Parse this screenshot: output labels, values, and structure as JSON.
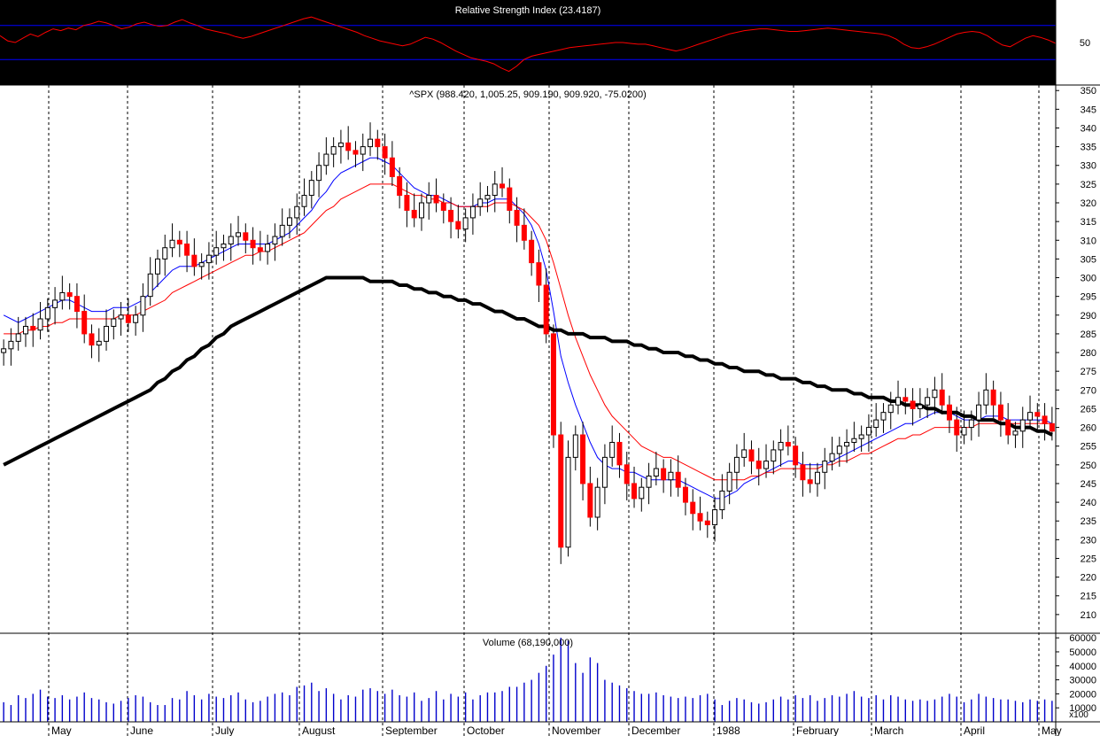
{
  "chart_data": [
    {
      "type": "line",
      "title": "Relative Strength Index (23.4187)",
      "ylim": [
        0,
        100
      ],
      "levels": [
        30,
        70
      ],
      "y_ticks": [
        "50"
      ],
      "series": [
        {
          "color": "#ff0000",
          "values": [
            58,
            52,
            50,
            55,
            60,
            57,
            62,
            66,
            64,
            67,
            65,
            70,
            72,
            75,
            73,
            70,
            66,
            68,
            72,
            74,
            71,
            69,
            70,
            74,
            77,
            73,
            70,
            66,
            64,
            62,
            60,
            57,
            55,
            57,
            60,
            63,
            66,
            69,
            72,
            75,
            78,
            80,
            77,
            74,
            71,
            68,
            65,
            62,
            58,
            55,
            52,
            50,
            48,
            46,
            48,
            52,
            56,
            54,
            50,
            45,
            40,
            36,
            32,
            30,
            28,
            25,
            20,
            16,
            22,
            30,
            34,
            36,
            38,
            40,
            42,
            44,
            45,
            46,
            47,
            48,
            49,
            50,
            50,
            49,
            48,
            48,
            46,
            44,
            42,
            40,
            42,
            45,
            48,
            51,
            54,
            57,
            60,
            62,
            64,
            65,
            66,
            66,
            65,
            64,
            63,
            63,
            64,
            65,
            66,
            67,
            66,
            65,
            64,
            63,
            62,
            61,
            60,
            58,
            54,
            48,
            44,
            43,
            45,
            48,
            52,
            56,
            60,
            62,
            63,
            62,
            58,
            52,
            47,
            45,
            50,
            55,
            58,
            56,
            53,
            49
          ]
        }
      ],
      "background": "#000000",
      "level_color": "#0000ff"
    },
    {
      "type": "candlestick",
      "title": "^SPX (988.420, 1,005.25, 909.190, 909.920, -75.0200)",
      "ylim": [
        205,
        351
      ],
      "y_ticks": [
        210,
        215,
        220,
        225,
        230,
        235,
        240,
        245,
        250,
        255,
        260,
        265,
        270,
        275,
        280,
        285,
        290,
        295,
        300,
        305,
        310,
        315,
        320,
        325,
        330,
        335,
        340,
        345,
        350
      ],
      "x_tick_labels": [
        "May",
        "June",
        "July",
        "August",
        "September",
        "October",
        "November",
        "December",
        "1988",
        "February",
        "March",
        "April",
        "May"
      ],
      "up_color": "#000000",
      "down_color": "#ff0000",
      "close": [
        281,
        283,
        285,
        287,
        286,
        289,
        292,
        294,
        296,
        295,
        291,
        285,
        282,
        283,
        287,
        289,
        290,
        288,
        290,
        295,
        301,
        305,
        308,
        310,
        309,
        306,
        303,
        304,
        306,
        308,
        309,
        311,
        312,
        310,
        308,
        307,
        309,
        311,
        314,
        316,
        319,
        322,
        326,
        330,
        333,
        335,
        336,
        334,
        333,
        335,
        337,
        335,
        332,
        327,
        322,
        318,
        316,
        320,
        322,
        320,
        318,
        315,
        313,
        316,
        319,
        321,
        322,
        325,
        324,
        318,
        314,
        310,
        304,
        298,
        285,
        258,
        228,
        252,
        258,
        245,
        236,
        244,
        252,
        256,
        250,
        245,
        241,
        244,
        247,
        249,
        246,
        248,
        244,
        240,
        237,
        235,
        234,
        238,
        243,
        248,
        252,
        254,
        251,
        249,
        251,
        254,
        256,
        255,
        250,
        246,
        245,
        248,
        251,
        253,
        255,
        256,
        257,
        258,
        260,
        262,
        264,
        266,
        268,
        267,
        265,
        266,
        268,
        270,
        266,
        262,
        258,
        260,
        262,
        266,
        270,
        266,
        262,
        258,
        259,
        262,
        264,
        263,
        261,
        259
      ],
      "series": [
        {
          "name": "",
          "color": "#0000ff",
          "values": [
            290,
            289,
            288,
            289,
            290,
            291,
            292,
            293,
            294,
            294,
            293,
            292,
            291,
            291,
            291,
            292,
            292,
            292,
            293,
            294,
            296,
            298,
            300,
            302,
            303,
            303,
            303,
            304,
            305,
            306,
            307,
            308,
            309,
            309,
            309,
            309,
            309,
            310,
            311,
            312,
            314,
            316,
            318,
            321,
            323,
            326,
            328,
            329,
            330,
            331,
            332,
            332,
            331,
            330,
            328,
            326,
            324,
            323,
            322,
            322,
            321,
            320,
            319,
            319,
            319,
            320,
            320,
            321,
            321,
            321,
            319,
            317,
            314,
            309,
            302,
            291,
            279,
            272,
            266,
            261,
            256,
            252,
            250,
            249,
            249,
            248,
            248,
            247,
            246,
            246,
            246,
            246,
            246,
            245,
            244,
            243,
            242,
            241,
            241,
            242,
            243,
            245,
            246,
            247,
            248,
            249,
            250,
            251,
            251,
            250,
            250,
            250,
            250,
            251,
            252,
            253,
            254,
            255,
            256,
            257,
            258,
            259,
            260,
            261,
            261,
            262,
            263,
            264,
            264,
            264,
            263,
            262,
            262,
            262,
            263,
            263,
            263,
            262,
            262,
            262,
            262,
            262,
            262,
            261
          ]
        },
        {
          "name": "",
          "color": "#ff0000",
          "values": [
            285,
            285,
            285,
            286,
            286,
            287,
            287,
            288,
            288,
            289,
            289,
            289,
            289,
            289,
            289,
            289,
            290,
            290,
            290,
            291,
            292,
            293,
            294,
            296,
            297,
            298,
            299,
            300,
            301,
            302,
            303,
            304,
            305,
            306,
            306,
            307,
            307,
            308,
            309,
            310,
            311,
            312,
            314,
            316,
            318,
            319,
            321,
            322,
            323,
            324,
            325,
            325,
            325,
            325,
            324,
            323,
            322,
            322,
            321,
            321,
            320,
            320,
            319,
            319,
            319,
            319,
            319,
            320,
            320,
            320,
            319,
            318,
            316,
            314,
            310,
            304,
            297,
            290,
            284,
            279,
            274,
            270,
            266,
            263,
            261,
            259,
            257,
            255,
            254,
            253,
            252,
            252,
            251,
            250,
            249,
            248,
            247,
            246,
            246,
            246,
            246,
            246,
            247,
            247,
            248,
            248,
            249,
            249,
            249,
            249,
            249,
            249,
            250,
            250,
            251,
            251,
            252,
            253,
            253,
            254,
            255,
            256,
            257,
            257,
            258,
            258,
            259,
            260,
            260,
            260,
            260,
            260,
            260,
            261,
            261,
            261,
            261,
            261,
            261,
            261,
            261,
            261,
            261,
            261
          ]
        },
        {
          "name": "",
          "color": "#000000",
          "values": [
            250,
            251,
            252,
            253,
            254,
            255,
            256,
            257,
            258,
            259,
            260,
            261,
            262,
            263,
            264,
            265,
            266,
            267,
            268,
            269,
            270,
            272,
            273,
            275,
            276,
            278,
            279,
            281,
            282,
            284,
            285,
            287,
            288,
            289,
            290,
            291,
            292,
            293,
            294,
            295,
            296,
            297,
            298,
            299,
            300,
            300,
            300,
            300,
            300,
            300,
            299,
            299,
            299,
            299,
            298,
            298,
            297,
            297,
            296,
            296,
            295,
            295,
            294,
            294,
            293,
            293,
            292,
            291,
            291,
            290,
            289,
            289,
            288,
            287,
            287,
            286,
            286,
            285,
            285,
            285,
            284,
            284,
            284,
            283,
            283,
            283,
            282,
            282,
            281,
            281,
            280,
            280,
            280,
            279,
            279,
            278,
            278,
            277,
            277,
            276,
            276,
            275,
            275,
            275,
            274,
            274,
            273,
            273,
            273,
            272,
            272,
            271,
            271,
            270,
            270,
            270,
            269,
            269,
            268,
            268,
            268,
            267,
            267,
            266,
            266,
            266,
            265,
            265,
            264,
            264,
            264,
            263,
            263,
            262,
            262,
            262,
            261,
            261,
            260,
            260,
            260,
            259,
            259,
            258
          ]
        }
      ]
    },
    {
      "type": "bar",
      "title": "Volume (68,190,000)",
      "ylim": [
        0,
        62000
      ],
      "y_ticks": [
        "60000",
        "50000",
        "40000",
        "30000",
        "20000",
        "10000"
      ],
      "unit_label": "x100",
      "color": "#0000cc",
      "values": [
        14000,
        12000,
        19000,
        17000,
        20000,
        23000,
        18000,
        17000,
        19000,
        16000,
        18000,
        21000,
        17000,
        16000,
        14000,
        13000,
        15000,
        17000,
        19000,
        18000,
        14000,
        12000,
        12000,
        17000,
        16000,
        22000,
        19000,
        16000,
        20000,
        18000,
        17000,
        19000,
        21000,
        16000,
        14000,
        15000,
        18000,
        20000,
        21000,
        19000,
        25000,
        26000,
        28000,
        22000,
        24000,
        20000,
        16000,
        19000,
        18000,
        23000,
        24000,
        22000,
        20000,
        23000,
        19000,
        18000,
        21000,
        15000,
        17000,
        22000,
        16000,
        20000,
        18000,
        21000,
        16000,
        19000,
        21000,
        21000,
        22000,
        25000,
        25000,
        28000,
        30000,
        35000,
        40000,
        48000,
        60000,
        58000,
        42000,
        35000,
        46000,
        42000,
        30000,
        28000,
        26000,
        24000,
        22000,
        20000,
        20000,
        21000,
        19000,
        18000,
        17000,
        18000,
        17000,
        19000,
        20000,
        16000,
        12000,
        15000,
        17000,
        16000,
        14000,
        13000,
        14000,
        16000,
        18000,
        16000,
        19000,
        17000,
        19000,
        15000,
        17000,
        19000,
        18000,
        20000,
        22000,
        18000,
        17000,
        19000,
        16000,
        19000,
        18000,
        16000,
        15000,
        16000,
        15000,
        16000,
        18000,
        20000,
        18000,
        14000,
        16000,
        20000,
        18000,
        17000,
        16000,
        16000,
        15000,
        14000,
        16000,
        15000,
        16000,
        15000
      ]
    }
  ]
}
